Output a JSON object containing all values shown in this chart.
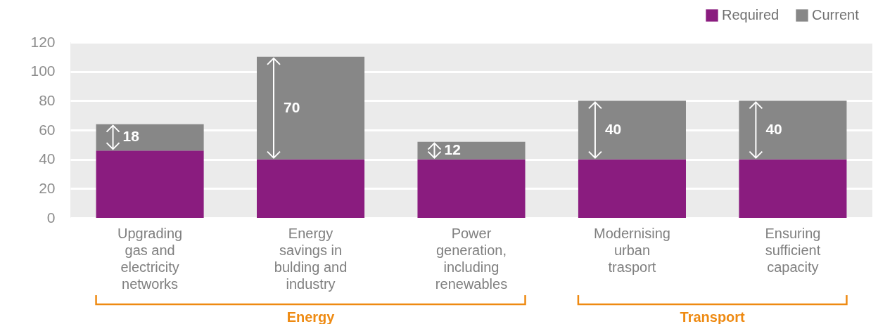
{
  "chart_data": {
    "type": "bar",
    "stacked": true,
    "categories": [
      "Upgrading gas and electricity networks",
      "Energy savings in bulding and industry",
      "Power generation, including renewables",
      "Modernising urban trasport",
      "Ensuring sufficient capacity"
    ],
    "series": [
      {
        "name": "Required",
        "color": "#8a1c7f",
        "values": [
          46,
          40,
          40,
          40,
          40
        ]
      },
      {
        "name": "Current",
        "color": "#878787",
        "values": [
          18,
          70,
          12,
          40,
          40
        ],
        "value_labels": [
          "18",
          "70",
          "12",
          "40",
          "40"
        ]
      }
    ],
    "ylim": [
      0,
      120
    ],
    "yticks": [
      0,
      20,
      40,
      60,
      80,
      100,
      120
    ],
    "grid": "y",
    "legend": "top right",
    "annotations": [
      "Energy",
      "Transport"
    ]
  }
}
